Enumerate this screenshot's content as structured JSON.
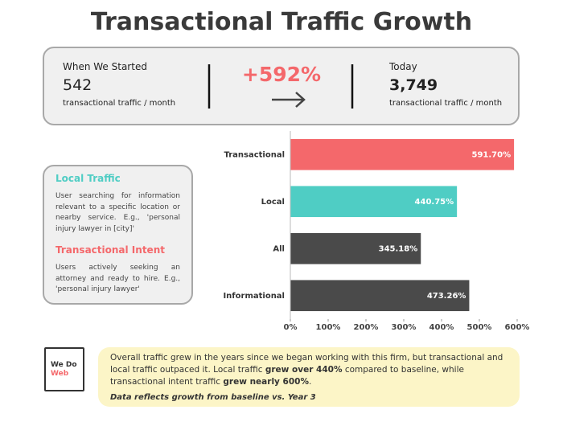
{
  "title": "Transactional Traffic Growth",
  "stats": {
    "start": {
      "label": "When We Started",
      "value": "542",
      "unit": "transactional traffic / month"
    },
    "change": "+592%",
    "today": {
      "label": "Today",
      "value": "3,749",
      "unit": "transactional traffic / month"
    }
  },
  "definitions": [
    {
      "title": "Local Traffic",
      "text": "User searching for information relevant to a specific location or nearby service. E.g., 'personal injury lawyer in [city]'"
    },
    {
      "title": "Transactional Intent",
      "text": "Users actively seeking an attorney and ready to hire. E.g., 'personal injury lawyer'"
    }
  ],
  "chart_data": {
    "type": "hbar",
    "categories": [
      "Transactional",
      "Local",
      "All",
      "Informational"
    ],
    "values": [
      591.7,
      440.75,
      345.18,
      473.26
    ],
    "value_labels": [
      "591.70%",
      "440.75%",
      "345.18%",
      "473.26%"
    ],
    "colors": [
      "#f4686b",
      "#4fcdc4",
      "#4a4a4a",
      "#4a4a4a"
    ],
    "xlim": [
      0,
      600
    ],
    "xticks": [
      {
        "value": 0,
        "label": "0%"
      },
      {
        "value": 100,
        "label": "100%"
      },
      {
        "value": 200,
        "label": "200%"
      },
      {
        "value": 300,
        "label": "300%"
      },
      {
        "value": 400,
        "label": "400%"
      },
      {
        "value": 500,
        "label": "500%"
      },
      {
        "value": 600,
        "label": "600%"
      }
    ]
  },
  "footer": {
    "logo": [
      "We Do",
      "Web"
    ],
    "note": [
      {
        "text": "Overall traffic grew in the years since we began working with this firm, but transactional and local traffic outpaced it. Local traffic ",
        "bold": false
      },
      {
        "text": "grew over 440%",
        "bold": true
      },
      {
        "text": " compared to baseline, while transactional intent traffic ",
        "bold": false
      },
      {
        "text": "grew nearly 600%",
        "bold": true
      },
      {
        "text": ".",
        "bold": false
      }
    ],
    "caption": "Data reflects growth from baseline vs. Year 3"
  }
}
